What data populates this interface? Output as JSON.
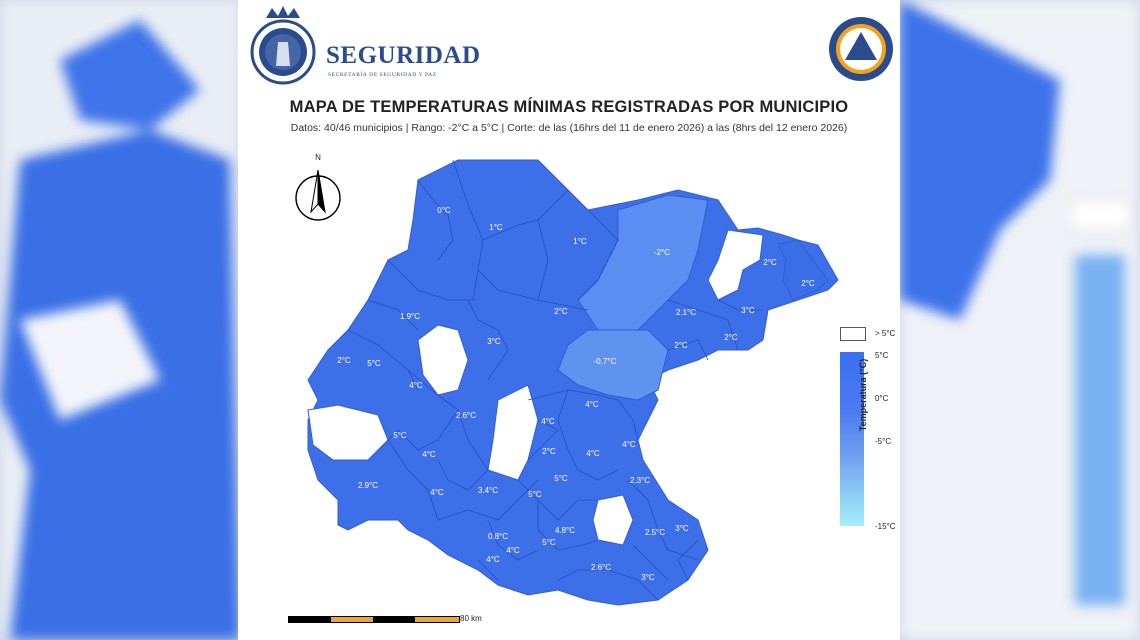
{
  "header": {
    "brand": "SEGURIDAD",
    "brand_sub": "SECRETARÍA DE SEGURIDAD Y PAZ"
  },
  "title": "MAPA DE TEMPERATURAS MÍNIMAS REGISTRADAS POR MUNICIPIO",
  "subtitle": "Datos: 40/46 municipios | Rango: -2°C a 5°C | Corte: de las (16hrs del 11 de enero 2026) a las (8hrs del 12 enero 2026)",
  "north_label": "N",
  "legend": {
    "title": "Temperatura (°C)",
    "over_label": "> 5°C",
    "ticks": [
      "5°C",
      "0°C",
      "-5°C",
      "-15°C"
    ],
    "colors": {
      "high": "#3a6ff0",
      "mid": "#6fa0f2",
      "low": "#a8eef8",
      "missing": "#ffffff"
    }
  },
  "scale_label": "80 km",
  "municipalities": [
    {
      "label": "0°C",
      "value": 0
    },
    {
      "label": "1°C",
      "value": 1
    },
    {
      "label": "1°C",
      "value": 1
    },
    {
      "label": "-2°C",
      "value": -2
    },
    {
      "label": "2°C",
      "value": 2
    },
    {
      "label": "2°C",
      "value": 2
    },
    {
      "label": "1.9°C",
      "value": 1.9
    },
    {
      "label": "2°C",
      "value": 2
    },
    {
      "label": "2.1°C",
      "value": 2.1
    },
    {
      "label": "3°C",
      "value": 3
    },
    {
      "label": "3°C",
      "value": 3
    },
    {
      "label": "2°C",
      "value": 2
    },
    {
      "label": "2°C",
      "value": 2
    },
    {
      "label": "5°C",
      "value": 5
    },
    {
      "label": "2°C",
      "value": 2
    },
    {
      "label": "-0.7°C",
      "value": -0.7
    },
    {
      "label": "4°C",
      "value": 4
    },
    {
      "label": "2.6°C",
      "value": 2.6
    },
    {
      "label": "4°C",
      "value": 4
    },
    {
      "label": "4°C",
      "value": 4
    },
    {
      "label": "5°C",
      "value": 5
    },
    {
      "label": "4°C",
      "value": 4
    },
    {
      "label": "2°C",
      "value": 2
    },
    {
      "label": "4°C",
      "value": 4
    },
    {
      "label": "4°C",
      "value": 4
    },
    {
      "label": "2.9°C",
      "value": 2.9
    },
    {
      "label": "5°C",
      "value": 5
    },
    {
      "label": "2.3°C",
      "value": 2.3
    },
    {
      "label": "4°C",
      "value": 4
    },
    {
      "label": "3.4°C",
      "value": 3.4
    },
    {
      "label": "5°C",
      "value": 5
    },
    {
      "label": "4.8°C",
      "value": 4.8
    },
    {
      "label": "2.5°C",
      "value": 2.5
    },
    {
      "label": "3°C",
      "value": 3
    },
    {
      "label": "0.8°C",
      "value": 0.8
    },
    {
      "label": "5°C",
      "value": 5
    },
    {
      "label": "4°C",
      "value": 4
    },
    {
      "label": "4°C",
      "value": 4
    },
    {
      "label": "2.6°C",
      "value": 2.6
    },
    {
      "label": "3°C",
      "value": 3
    }
  ]
}
